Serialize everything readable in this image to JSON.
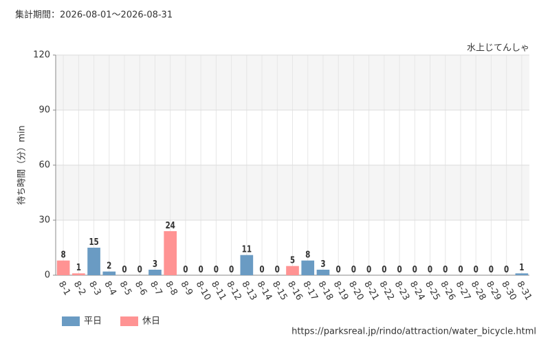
{
  "chart_data": {
    "type": "bar",
    "title": "集計期間：2026-08-01～2026-08-31",
    "subtitle": "水上じてんしゃ",
    "y_label": "待ち時間（分）min",
    "source": "https://parksreal.jp/rindo/attraction/water_bicycle.html",
    "categories": [
      "8-1",
      "8-2",
      "8-3",
      "8-4",
      "8-5",
      "8-6",
      "8-7",
      "8-8",
      "8-9",
      "8-10",
      "8-11",
      "8-12",
      "8-13",
      "8-14",
      "8-15",
      "8-16",
      "8-17",
      "8-18",
      "8-19",
      "8-20",
      "8-21",
      "8-22",
      "8-23",
      "8-24",
      "8-25",
      "8-26",
      "8-27",
      "8-28",
      "8-29",
      "8-30",
      "8-31"
    ],
    "series": [
      {
        "name": "平日",
        "color": "#6a9bc3",
        "values": [
          null,
          null,
          15,
          2,
          0,
          0,
          3,
          null,
          null,
          0,
          null,
          0,
          11,
          0,
          null,
          null,
          8,
          3,
          0,
          0,
          0,
          null,
          null,
          0,
          0,
          0,
          0,
          0,
          null,
          null,
          1
        ]
      },
      {
        "name": "休日",
        "color": "#ff9393",
        "values": [
          8,
          1,
          null,
          null,
          null,
          null,
          null,
          24,
          0,
          null,
          0,
          null,
          null,
          null,
          0,
          5,
          null,
          null,
          null,
          null,
          null,
          0,
          0,
          null,
          null,
          null,
          null,
          null,
          0,
          0,
          null
        ]
      }
    ],
    "ylim": [
      0,
      120
    ],
    "yticks": [
      0,
      30,
      60,
      90,
      120
    ],
    "grid": true
  }
}
